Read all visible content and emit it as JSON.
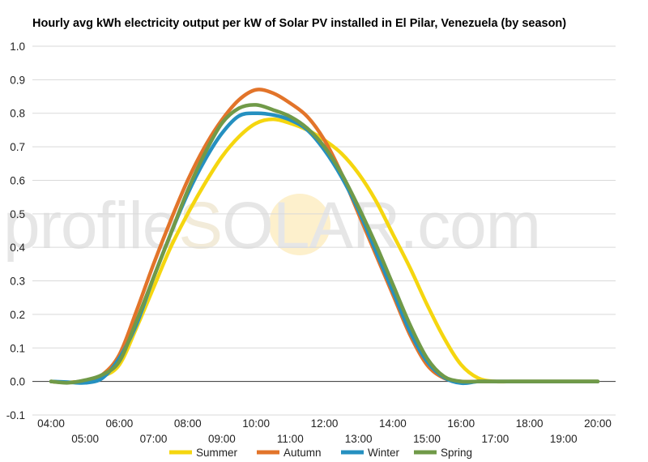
{
  "chart_data": {
    "type": "line",
    "title": "Hourly avg kWh electricity output per kW of Solar PV installed in El Pilar, Venezuela (by season)",
    "xlabel": "",
    "ylabel": "",
    "x": [
      "04:00",
      "04:30",
      "05:00",
      "05:30",
      "06:00",
      "06:30",
      "07:00",
      "07:30",
      "08:00",
      "08:30",
      "09:00",
      "09:30",
      "10:00",
      "10:30",
      "11:00",
      "11:30",
      "12:00",
      "12:30",
      "13:00",
      "13:30",
      "14:00",
      "14:30",
      "15:00",
      "15:30",
      "16:00",
      "16:30",
      "17:00",
      "17:30",
      "18:00",
      "18:30",
      "19:00",
      "19:30",
      "20:00"
    ],
    "x_ticks_upper": [
      "04:00",
      "06:00",
      "08:00",
      "10:00",
      "12:00",
      "14:00",
      "16:00",
      "18:00",
      "20:00"
    ],
    "x_ticks_lower": [
      "05:00",
      "07:00",
      "09:00",
      "11:00",
      "13:00",
      "15:00",
      "17:00",
      "19:00"
    ],
    "y_ticks": [
      "1.0",
      "0.9",
      "0.8",
      "0.7",
      "0.6",
      "0.5",
      "0.4",
      "0.3",
      "0.2",
      "0.1",
      "0.0",
      "-0.1"
    ],
    "ylim": [
      -0.1,
      1.0
    ],
    "grid": true,
    "legend_position": "bottom",
    "series": [
      {
        "name": "Summer",
        "color": "#f5d60f",
        "values": [
          0.0,
          -0.003,
          0.002,
          0.015,
          0.05,
          0.16,
          0.28,
          0.4,
          0.5,
          0.59,
          0.67,
          0.73,
          0.77,
          0.782,
          0.77,
          0.75,
          0.72,
          0.68,
          0.62,
          0.54,
          0.44,
          0.34,
          0.23,
          0.13,
          0.05,
          0.01,
          0.0,
          0.0,
          0.0,
          0.0,
          0.0,
          0.0,
          0.0
        ]
      },
      {
        "name": "Autumn",
        "color": "#e2742a",
        "values": [
          0.0,
          -0.003,
          0.003,
          0.02,
          0.08,
          0.21,
          0.35,
          0.48,
          0.6,
          0.7,
          0.78,
          0.84,
          0.87,
          0.86,
          0.83,
          0.79,
          0.72,
          0.62,
          0.5,
          0.38,
          0.26,
          0.14,
          0.05,
          0.01,
          0.0,
          0.0,
          0.0,
          0.0,
          0.0,
          0.0,
          0.0,
          0.0,
          0.0
        ]
      },
      {
        "name": "Winter",
        "color": "#2590c0",
        "values": [
          0.0,
          -0.002,
          -0.004,
          0.01,
          0.07,
          0.17,
          0.31,
          0.44,
          0.56,
          0.66,
          0.74,
          0.792,
          0.8,
          0.795,
          0.78,
          0.75,
          0.69,
          0.61,
          0.51,
          0.39,
          0.27,
          0.15,
          0.06,
          0.012,
          -0.005,
          0.0,
          0.0,
          0.0,
          0.0,
          0.0,
          0.0,
          0.0,
          0.0
        ]
      },
      {
        "name": "Spring",
        "color": "#709a48",
        "values": [
          0.0,
          -0.004,
          0.004,
          0.02,
          0.06,
          0.18,
          0.31,
          0.44,
          0.57,
          0.68,
          0.77,
          0.815,
          0.825,
          0.81,
          0.79,
          0.755,
          0.7,
          0.62,
          0.52,
          0.41,
          0.29,
          0.17,
          0.07,
          0.015,
          0.0,
          0.0,
          0.0,
          0.0,
          0.0,
          0.0,
          0.0,
          0.0,
          0.0
        ]
      }
    ]
  },
  "watermark": {
    "left": "profile",
    "sun_letter": "S",
    "right": "OLAR.com",
    "text_color": "#e6e6e6",
    "sun_color": "#fdf0cc"
  }
}
